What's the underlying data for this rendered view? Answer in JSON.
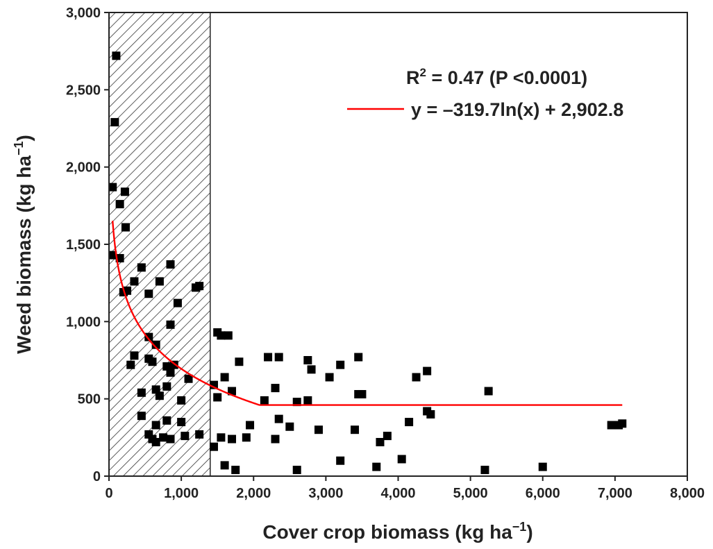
{
  "chart_data": {
    "type": "scatter",
    "title": "",
    "xlabel": "Cover crop biomass (kg ha",
    "xlabel_sup": "−1",
    "xlabel_end": ")",
    "ylabel": "Weed biomass (kg ha",
    "ylabel_sup": "−1",
    "ylabel_end": ")",
    "xlim": [
      0,
      8000
    ],
    "ylim": [
      0,
      3000
    ],
    "x_ticks": [
      0,
      1000,
      2000,
      3000,
      4000,
      5000,
      6000,
      7000,
      8000
    ],
    "x_tick_labels": [
      "0",
      "1,000",
      "2,000",
      "3,000",
      "4,000",
      "5,000",
      "6,000",
      "7,000",
      "8,000"
    ],
    "y_ticks": [
      0,
      500,
      1000,
      1500,
      2000,
      2500,
      3000
    ],
    "y_tick_labels": [
      "0",
      "500",
      "1,000",
      "1,500",
      "2,000",
      "2,500",
      "3,000"
    ],
    "grid": false,
    "shaded_region": {
      "x_start": 0,
      "x_end": 1400,
      "pattern": "diagonal-hatch"
    },
    "annotations": {
      "r2_prefix": "R",
      "r2_sup": "2",
      "r2_rest": " = 0.47 (P <0.0001)"
    },
    "legend": {
      "position": "top-right",
      "entry": "y = –319.7ln(x) + 2,902.8"
    },
    "fit": {
      "type": "log",
      "a": -319.7,
      "b": 2902.8,
      "x_min": 50,
      "x_max": 7100,
      "floor": 460,
      "color": "#ff0000"
    },
    "marker_color": "#000000",
    "series": [
      {
        "points": [
          [
            100,
            2720
          ],
          [
            80,
            2290
          ],
          [
            50,
            1870
          ],
          [
            220,
            1840
          ],
          [
            150,
            1760
          ],
          [
            230,
            1610
          ],
          [
            50,
            1430
          ],
          [
            150,
            1410
          ],
          [
            450,
            1350
          ],
          [
            850,
            1370
          ],
          [
            350,
            1260
          ],
          [
            700,
            1260
          ],
          [
            1200,
            1220
          ],
          [
            1250,
            1230
          ],
          [
            200,
            1190
          ],
          [
            250,
            1200
          ],
          [
            550,
            1180
          ],
          [
            950,
            1120
          ],
          [
            850,
            980
          ],
          [
            550,
            900
          ],
          [
            650,
            850
          ],
          [
            350,
            780
          ],
          [
            550,
            760
          ],
          [
            600,
            740
          ],
          [
            300,
            720
          ],
          [
            800,
            710
          ],
          [
            900,
            720
          ],
          [
            850,
            670
          ],
          [
            1100,
            630
          ],
          [
            450,
            540
          ],
          [
            650,
            560
          ],
          [
            800,
            580
          ],
          [
            700,
            520
          ],
          [
            1000,
            490
          ],
          [
            450,
            390
          ],
          [
            650,
            330
          ],
          [
            800,
            360
          ],
          [
            1000,
            350
          ],
          [
            550,
            270
          ],
          [
            600,
            240
          ],
          [
            650,
            220
          ],
          [
            750,
            250
          ],
          [
            850,
            240
          ],
          [
            1050,
            260
          ],
          [
            1250,
            270
          ],
          [
            1500,
            930
          ],
          [
            1550,
            910
          ],
          [
            1650,
            910
          ],
          [
            1450,
            590
          ],
          [
            1600,
            640
          ],
          [
            1500,
            510
          ],
          [
            1700,
            550
          ],
          [
            1800,
            740
          ],
          [
            1450,
            190
          ],
          [
            1550,
            250
          ],
          [
            1600,
            70
          ],
          [
            1700,
            240
          ],
          [
            1750,
            40
          ],
          [
            1900,
            250
          ],
          [
            1950,
            330
          ],
          [
            2150,
            490
          ],
          [
            2200,
            770
          ],
          [
            2350,
            770
          ],
          [
            2300,
            570
          ],
          [
            2300,
            240
          ],
          [
            2350,
            370
          ],
          [
            2500,
            320
          ],
          [
            2600,
            480
          ],
          [
            2600,
            40
          ],
          [
            2750,
            750
          ],
          [
            2750,
            490
          ],
          [
            2800,
            690
          ],
          [
            2900,
            300
          ],
          [
            3050,
            640
          ],
          [
            3200,
            720
          ],
          [
            3200,
            100
          ],
          [
            3400,
            300
          ],
          [
            3450,
            770
          ],
          [
            3450,
            530
          ],
          [
            3500,
            530
          ],
          [
            3700,
            60
          ],
          [
            3750,
            220
          ],
          [
            3850,
            260
          ],
          [
            4050,
            110
          ],
          [
            4150,
            350
          ],
          [
            4250,
            640
          ],
          [
            4400,
            680
          ],
          [
            4400,
            420
          ],
          [
            4450,
            400
          ],
          [
            5200,
            40
          ],
          [
            5250,
            550
          ],
          [
            6000,
            60
          ],
          [
            6950,
            330
          ],
          [
            7050,
            330
          ],
          [
            7100,
            340
          ]
        ]
      }
    ]
  }
}
